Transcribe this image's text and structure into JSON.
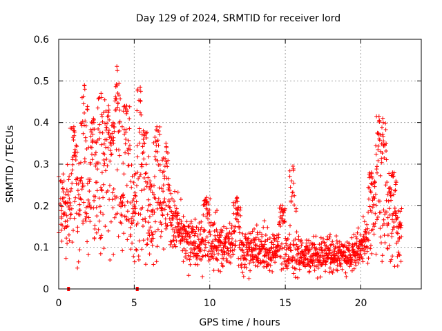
{
  "chart_data": {
    "type": "scatter",
    "title": "Day 129 of 2024, SRMTID for receiver lord",
    "xlabel": "GPS time / hours",
    "ylabel": "SRMTID / TECUs",
    "xlim": [
      0,
      24
    ],
    "ylim": [
      0,
      0.6
    ],
    "xticks": [
      0,
      5,
      10,
      15,
      20
    ],
    "xtick_labels": [
      "0",
      "5",
      "10",
      "15",
      "20"
    ],
    "yticks": [
      0,
      0.1,
      0.2,
      0.3,
      0.4,
      0.5,
      0.6
    ],
    "ytick_labels": [
      "0",
      "0.1",
      "0.2",
      "0.3",
      "0.4",
      "0.5",
      "0.6"
    ],
    "grid": true,
    "marker": "plus",
    "color": "#ff0000",
    "zero_square_markers": [
      0.65,
      5.2
    ],
    "level_profile": [
      {
        "x": 0.0,
        "y": 0.2,
        "spread": 0.08
      },
      {
        "x": 0.5,
        "y": 0.19,
        "spread": 0.08
      },
      {
        "x": 1.0,
        "y": 0.18,
        "spread": 0.09
      },
      {
        "x": 2.0,
        "y": 0.2,
        "spread": 0.11
      },
      {
        "x": 3.0,
        "y": 0.22,
        "spread": 0.13
      },
      {
        "x": 3.5,
        "y": 0.25,
        "spread": 0.14
      },
      {
        "x": 4.0,
        "y": 0.22,
        "spread": 0.13
      },
      {
        "x": 5.0,
        "y": 0.19,
        "spread": 0.1
      },
      {
        "x": 6.0,
        "y": 0.2,
        "spread": 0.1
      },
      {
        "x": 7.0,
        "y": 0.19,
        "spread": 0.08
      },
      {
        "x": 8.0,
        "y": 0.14,
        "spread": 0.05
      },
      {
        "x": 9.0,
        "y": 0.11,
        "spread": 0.045
      },
      {
        "x": 10.0,
        "y": 0.1,
        "spread": 0.045
      },
      {
        "x": 12.0,
        "y": 0.1,
        "spread": 0.045
      },
      {
        "x": 14.0,
        "y": 0.09,
        "spread": 0.04
      },
      {
        "x": 16.0,
        "y": 0.085,
        "spread": 0.035
      },
      {
        "x": 18.0,
        "y": 0.08,
        "spread": 0.035
      },
      {
        "x": 19.5,
        "y": 0.085,
        "spread": 0.03
      },
      {
        "x": 20.5,
        "y": 0.12,
        "spread": 0.05
      },
      {
        "x": 21.0,
        "y": 0.16,
        "spread": 0.07
      },
      {
        "x": 21.5,
        "y": 0.17,
        "spread": 0.08
      },
      {
        "x": 22.0,
        "y": 0.15,
        "spread": 0.07
      },
      {
        "x": 22.7,
        "y": 0.14,
        "spread": 0.06
      }
    ],
    "x_end": 22.7,
    "num_points": 1900,
    "peaks": [
      {
        "x": 1.0,
        "y": 0.39
      },
      {
        "x": 1.7,
        "y": 0.49
      },
      {
        "x": 2.3,
        "y": 0.41
      },
      {
        "x": 2.8,
        "y": 0.47
      },
      {
        "x": 3.3,
        "y": 0.44
      },
      {
        "x": 3.6,
        "y": 0.4
      },
      {
        "x": 3.85,
        "y": 0.535
      },
      {
        "x": 4.5,
        "y": 0.44
      },
      {
        "x": 5.4,
        "y": 0.485
      },
      {
        "x": 5.6,
        "y": 0.38
      },
      {
        "x": 6.5,
        "y": 0.39
      },
      {
        "x": 7.1,
        "y": 0.35
      },
      {
        "x": 9.8,
        "y": 0.22
      },
      {
        "x": 11.8,
        "y": 0.22
      },
      {
        "x": 14.8,
        "y": 0.2
      },
      {
        "x": 15.5,
        "y": 0.295
      },
      {
        "x": 20.7,
        "y": 0.28
      },
      {
        "x": 21.2,
        "y": 0.415
      },
      {
        "x": 21.45,
        "y": 0.41
      },
      {
        "x": 22.1,
        "y": 0.28
      }
    ]
  }
}
